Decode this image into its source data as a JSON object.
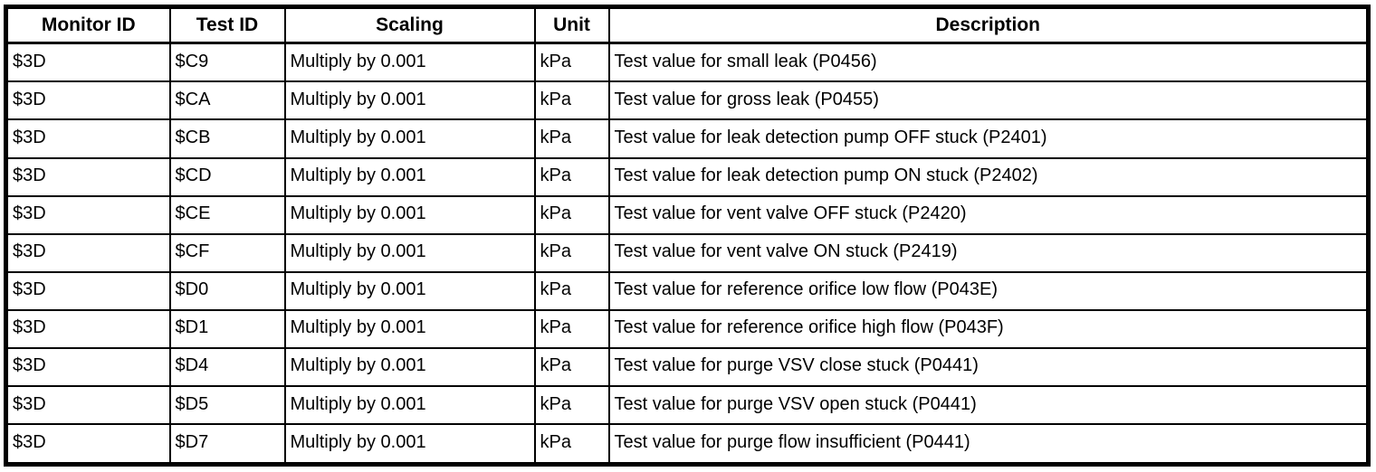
{
  "colors": {
    "background": "#ffffff",
    "border": "#000000",
    "text": "#000000"
  },
  "table": {
    "columns": [
      {
        "key": "monitor_id",
        "label": "Monitor ID"
      },
      {
        "key": "test_id",
        "label": "Test ID"
      },
      {
        "key": "scaling",
        "label": "Scaling"
      },
      {
        "key": "unit",
        "label": "Unit"
      },
      {
        "key": "description",
        "label": "Description"
      }
    ],
    "rows": [
      {
        "monitor_id": "$3D",
        "test_id": "$C9",
        "scaling": "Multiply by 0.001",
        "unit": "kPa",
        "description": "Test value for small leak (P0456)"
      },
      {
        "monitor_id": "$3D",
        "test_id": "$CA",
        "scaling": "Multiply by 0.001",
        "unit": "kPa",
        "description": "Test value for gross leak (P0455)"
      },
      {
        "monitor_id": "$3D",
        "test_id": "$CB",
        "scaling": "Multiply by 0.001",
        "unit": "kPa",
        "description": "Test value for leak detection pump OFF stuck (P2401)"
      },
      {
        "monitor_id": "$3D",
        "test_id": "$CD",
        "scaling": "Multiply by 0.001",
        "unit": "kPa",
        "description": "Test value for leak detection pump ON stuck (P2402)"
      },
      {
        "monitor_id": "$3D",
        "test_id": "$CE",
        "scaling": "Multiply by 0.001",
        "unit": "kPa",
        "description": "Test value for vent valve OFF stuck (P2420)"
      },
      {
        "monitor_id": "$3D",
        "test_id": "$CF",
        "scaling": "Multiply by 0.001",
        "unit": "kPa",
        "description": "Test value for vent valve ON stuck (P2419)"
      },
      {
        "monitor_id": "$3D",
        "test_id": "$D0",
        "scaling": "Multiply by 0.001",
        "unit": "kPa",
        "description": "Test value for reference orifice low flow (P043E)"
      },
      {
        "monitor_id": "$3D",
        "test_id": "$D1",
        "scaling": "Multiply by 0.001",
        "unit": "kPa",
        "description": "Test value for reference orifice high flow (P043F)"
      },
      {
        "monitor_id": "$3D",
        "test_id": "$D4",
        "scaling": "Multiply by 0.001",
        "unit": "kPa",
        "description": "Test value for purge VSV close stuck (P0441)"
      },
      {
        "monitor_id": "$3D",
        "test_id": "$D5",
        "scaling": "Multiply by 0.001",
        "unit": "kPa",
        "description": "Test value for purge VSV open stuck (P0441)"
      },
      {
        "monitor_id": "$3D",
        "test_id": "$D7",
        "scaling": "Multiply by 0.001",
        "unit": "kPa",
        "description": "Test value for purge flow insufficient (P0441)"
      }
    ]
  }
}
